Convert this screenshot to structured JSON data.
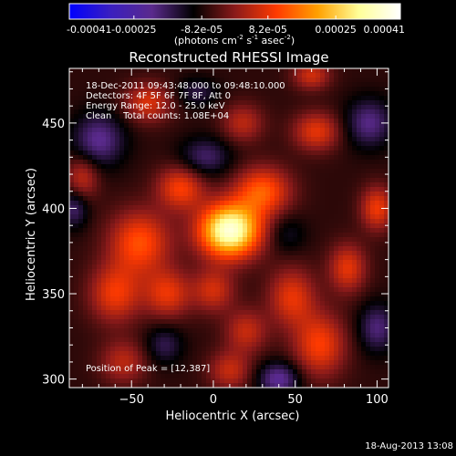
{
  "chart_data": {
    "type": "heatmap",
    "title": "Reconstructed RHESSI Image",
    "colorbar": {
      "ticks": [
        "-0.00041",
        "-0.00025",
        "-8.2e-05",
        "8.2e-05",
        "0.00025",
        "0.00041"
      ],
      "unit_prefix": "(photons cm",
      "unit_exp1": "-2",
      "unit_mid": " s",
      "unit_exp2": "-1",
      "unit_mid2": " asec",
      "unit_exp3": "-2",
      "unit_suffix": ")",
      "range": [
        -0.00041,
        0.00041
      ],
      "colors": [
        "#0000ff",
        "#3a1fbf",
        "#5a2a8c",
        "#000000",
        "#8a1a1a",
        "#ff3a00",
        "#ffa000",
        "#ffff99",
        "#ffffff"
      ]
    },
    "xlabel": "Heliocentric X (arcsec)",
    "ylabel": "Heliocentric Y (arcsec)",
    "xlim": [
      -88,
      107
    ],
    "ylim": [
      295,
      482
    ],
    "xticks": [
      -50,
      0,
      50,
      100
    ],
    "yticks": [
      300,
      350,
      400,
      450
    ],
    "xtick_labels": [
      "−50",
      "0",
      "50",
      "100"
    ],
    "ytick_labels": [
      "300",
      "350",
      "400",
      "450"
    ],
    "info_lines": [
      "18-Dec-2011 09:43:48.000 to 09:48:10.000",
      "Detectors: 4F 5F 6F 7F 8F, Att 0",
      "Energy Range: 12.0 - 25.0 keV",
      "Clean    Total counts: 1.08E+04"
    ],
    "peak_label": "Position of Peak = [12,387]",
    "peak": {
      "x": 12,
      "y": 387,
      "value": 0.00041
    },
    "blobs": [
      {
        "x": 10,
        "y": 387,
        "sx": 13,
        "sy": 11,
        "a": 0.00044
      },
      {
        "x": 30,
        "y": 410,
        "sx": 12,
        "sy": 10,
        "a": 0.0002
      },
      {
        "x": -20,
        "y": 412,
        "sx": 10,
        "sy": 9,
        "a": 0.00017
      },
      {
        "x": -45,
        "y": 380,
        "sx": 13,
        "sy": 13,
        "a": 0.00019
      },
      {
        "x": -60,
        "y": 350,
        "sx": 11,
        "sy": 12,
        "a": 0.00016
      },
      {
        "x": -28,
        "y": 350,
        "sx": 10,
        "sy": 10,
        "a": 0.00015
      },
      {
        "x": 0,
        "y": 352,
        "sx": 9,
        "sy": 9,
        "a": 0.00013
      },
      {
        "x": 20,
        "y": 328,
        "sx": 9,
        "sy": 9,
        "a": 0.00012
      },
      {
        "x": 10,
        "y": 305,
        "sx": 9,
        "sy": 8,
        "a": 0.00012
      },
      {
        "x": -55,
        "y": 310,
        "sx": 10,
        "sy": 9,
        "a": 0.00011
      },
      {
        "x": 48,
        "y": 348,
        "sx": 10,
        "sy": 12,
        "a": 0.00015
      },
      {
        "x": 65,
        "y": 320,
        "sx": 11,
        "sy": 13,
        "a": 0.00017
      },
      {
        "x": 82,
        "y": 365,
        "sx": 8,
        "sy": 10,
        "a": 0.00015
      },
      {
        "x": 100,
        "y": 400,
        "sx": 7,
        "sy": 9,
        "a": 0.00016
      },
      {
        "x": 63,
        "y": 445,
        "sx": 10,
        "sy": 8,
        "a": 0.00015
      },
      {
        "x": 18,
        "y": 450,
        "sx": 9,
        "sy": 8,
        "a": 0.00011
      },
      {
        "x": -40,
        "y": 462,
        "sx": 10,
        "sy": 8,
        "a": 0.00014
      },
      {
        "x": 60,
        "y": 478,
        "sx": 8,
        "sy": 6,
        "a": 0.00013
      },
      {
        "x": -80,
        "y": 418,
        "sx": 7,
        "sy": 9,
        "a": 0.00012
      },
      {
        "x": -5,
        "y": 430,
        "sx": 11,
        "sy": 8,
        "a": -0.00011
      },
      {
        "x": -70,
        "y": 440,
        "sx": 11,
        "sy": 11,
        "a": -0.00014
      },
      {
        "x": 40,
        "y": 300,
        "sx": 9,
        "sy": 7,
        "a": -0.00015
      },
      {
        "x": 100,
        "y": 330,
        "sx": 8,
        "sy": 10,
        "a": -0.00012
      },
      {
        "x": 95,
        "y": 450,
        "sx": 10,
        "sy": 10,
        "a": -0.00013
      },
      {
        "x": -85,
        "y": 400,
        "sx": 6,
        "sy": 8,
        "a": -0.00011
      },
      {
        "x": 45,
        "y": 385,
        "sx": 8,
        "sy": 8,
        "a": -6e-05
      },
      {
        "x": -30,
        "y": 320,
        "sx": 8,
        "sy": 8,
        "a": -9e-05
      },
      {
        "x": -10,
        "y": 468,
        "sx": 9,
        "sy": 6,
        "a": -8e-05
      }
    ]
  },
  "footer": {
    "timestamp": "18-Aug-2013 13:08"
  }
}
